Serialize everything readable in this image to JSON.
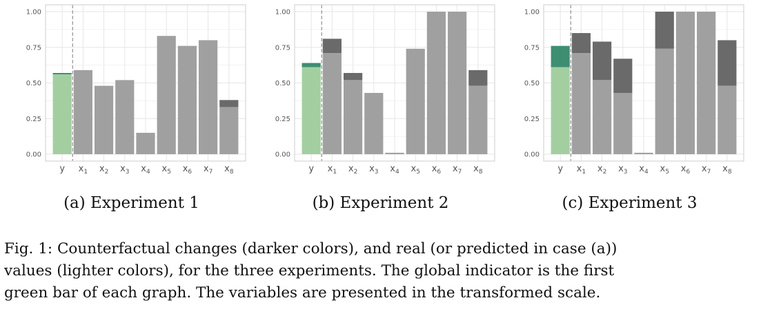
{
  "colors": {
    "light_gray": "#a0a0a0",
    "dark_gray": "#6a6a6a",
    "light_green": "#a3cfa0",
    "dark_green": "#3e8e72",
    "grid": "#e6e6e6",
    "panel_border": "#cccccc",
    "dashed": "#999999"
  },
  "chart_data": [
    {
      "type": "bar",
      "subcaption": "(a) Experiment 1",
      "categories": [
        "y",
        "x1",
        "x2",
        "x3",
        "x4",
        "x5",
        "x6",
        "x7",
        "x8"
      ],
      "ylim": [
        0,
        1
      ],
      "yticks": [
        "0.00",
        "0.25",
        "0.50",
        "0.75",
        "1.00"
      ],
      "grid": true,
      "vline_after_category": "y",
      "series": [
        {
          "name": "real values",
          "values": [
            0.56,
            0.59,
            0.48,
            0.52,
            0.15,
            0.83,
            0.76,
            0.8,
            0.33
          ]
        },
        {
          "name": "counterfactual",
          "values": [
            0.57,
            0.59,
            0.48,
            0.52,
            0.15,
            0.83,
            0.76,
            0.8,
            0.38
          ]
        }
      ]
    },
    {
      "type": "bar",
      "subcaption": "(b) Experiment 2",
      "categories": [
        "y",
        "x1",
        "x2",
        "x3",
        "x4",
        "x5",
        "x6",
        "x7",
        "x8"
      ],
      "ylim": [
        0,
        1
      ],
      "yticks": [
        "0.00",
        "0.25",
        "0.50",
        "0.75",
        "1.00"
      ],
      "grid": true,
      "vline_after_category": "y",
      "series": [
        {
          "name": "real values",
          "values": [
            0.61,
            0.71,
            0.52,
            0.43,
            0.01,
            0.74,
            1.0,
            1.0,
            0.48
          ]
        },
        {
          "name": "counterfactual",
          "values": [
            0.64,
            0.81,
            0.57,
            0.43,
            0.01,
            0.74,
            1.0,
            1.0,
            0.59
          ]
        }
      ]
    },
    {
      "type": "bar",
      "subcaption": "(c) Experiment 3",
      "categories": [
        "y",
        "x1",
        "x2",
        "x3",
        "x4",
        "x5",
        "x6",
        "x7",
        "x8"
      ],
      "ylim": [
        0,
        1
      ],
      "yticks": [
        "0.00",
        "0.25",
        "0.50",
        "0.75",
        "1.00"
      ],
      "grid": true,
      "vline_after_category": "y",
      "series": [
        {
          "name": "real values",
          "values": [
            0.61,
            0.71,
            0.52,
            0.43,
            0.01,
            0.74,
            1.0,
            1.0,
            0.48
          ]
        },
        {
          "name": "counterfactual",
          "values": [
            0.76,
            0.85,
            0.79,
            0.67,
            0.01,
            1.0,
            1.0,
            1.0,
            0.8
          ]
        }
      ]
    }
  ],
  "caption": {
    "line1": "Fig. 1: Counterfactual changes (darker colors), and real (or predicted in case (a))",
    "line2": "values (lighter colors), for the three experiments. The global indicator is the first",
    "line3": "green bar of each graph. The variables are presented in the transformed scale."
  }
}
